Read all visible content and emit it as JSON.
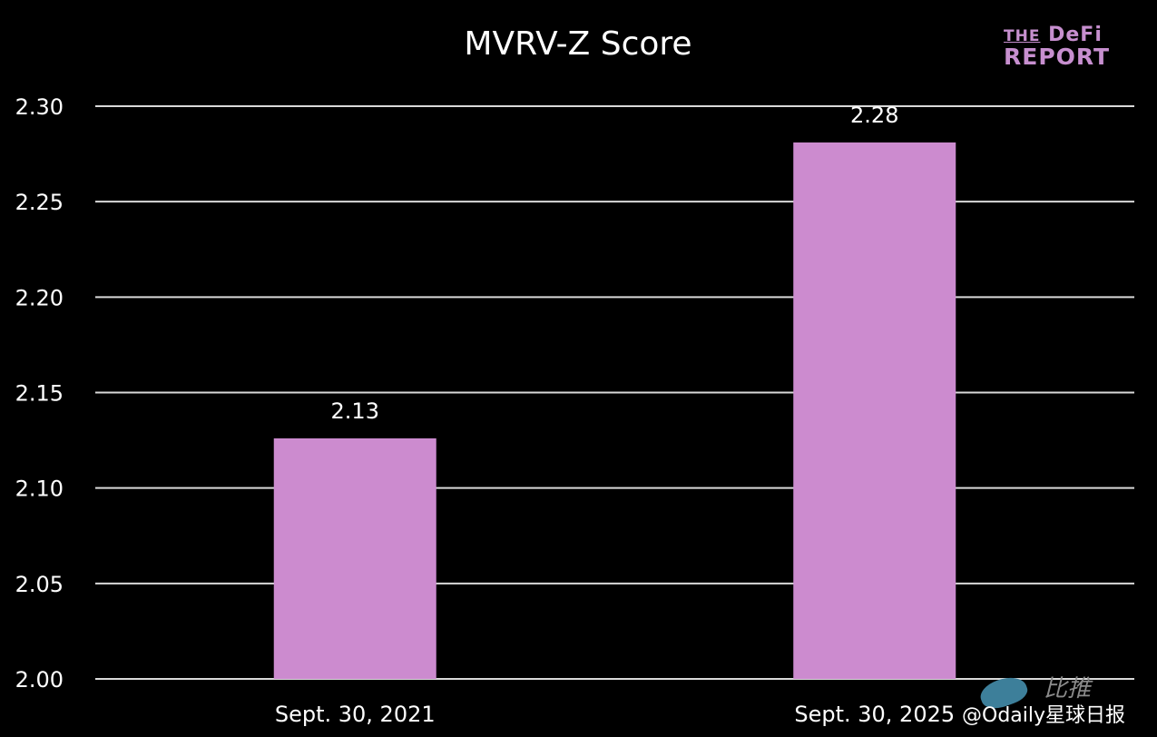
{
  "chart_data": {
    "type": "bar",
    "title": "MVRV-Z Score",
    "categories": [
      "Sept. 30, 2021",
      "Sept. 30, 2025"
    ],
    "values": [
      2.126,
      2.281
    ],
    "data_labels": [
      "2.13",
      "2.28"
    ],
    "xlabel": "",
    "ylabel": "",
    "ylim": [
      2.0,
      2.3
    ],
    "yticks": [
      "2.00",
      "2.05",
      "2.10",
      "2.15",
      "2.20",
      "2.25",
      "2.30"
    ],
    "grid": true,
    "bar_color": "#cc8bcf",
    "background": "#000000",
    "grid_color": "#d9d9d9",
    "text_color": "#ffffff"
  },
  "logo": {
    "line1_small": "THE",
    "line1_big": "DeFi",
    "line2": "REPORT"
  },
  "watermark": {
    "handle": "@Odaily星球日报",
    "source": "比推"
  }
}
